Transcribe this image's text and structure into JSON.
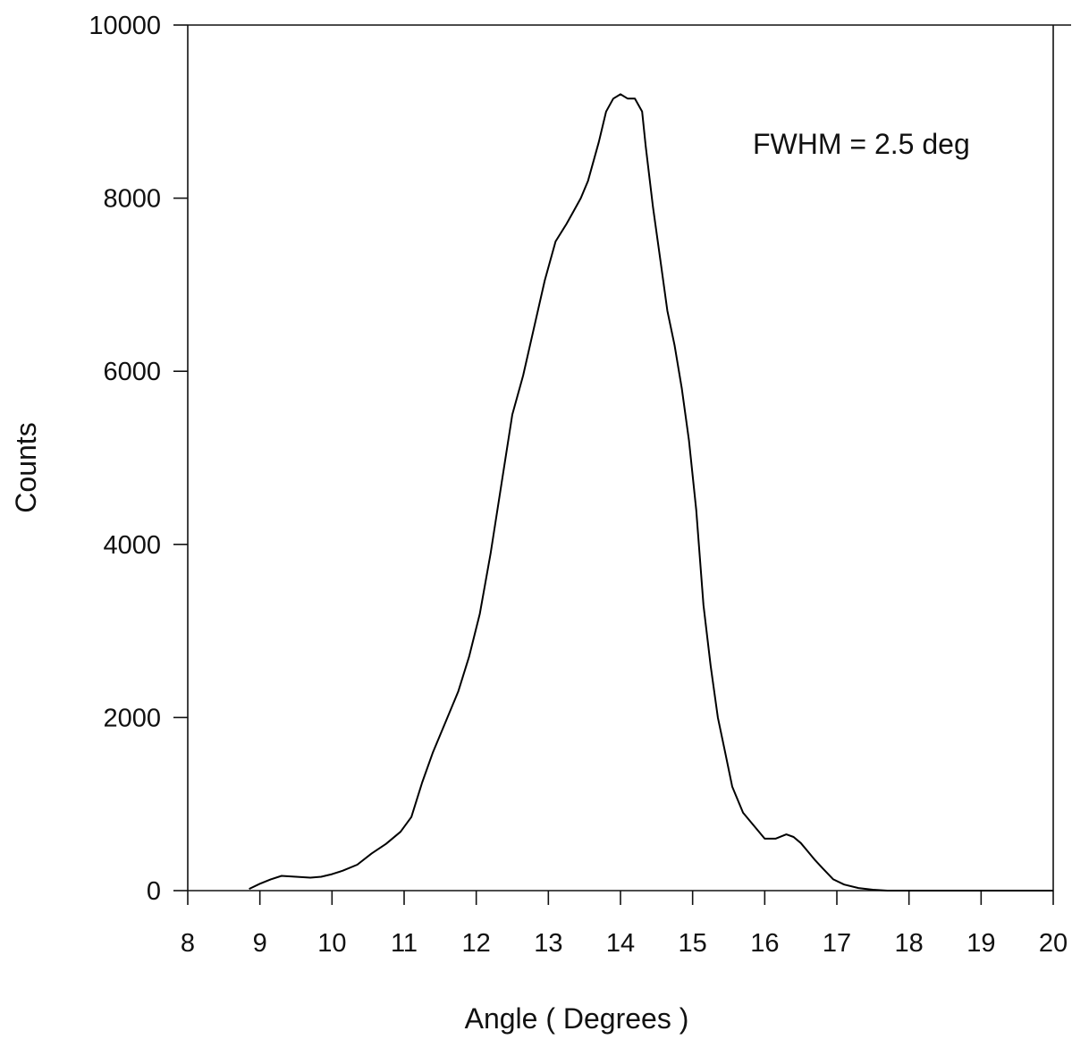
{
  "chart_data": {
    "type": "line",
    "xlabel": "Angle ( Degrees )",
    "ylabel": "Counts",
    "xlim": [
      8,
      20
    ],
    "ylim": [
      0,
      10000
    ],
    "x_ticks": [
      "8",
      "9",
      "10",
      "11",
      "12",
      "13",
      "14",
      "15",
      "16",
      "17",
      "18",
      "19",
      "20"
    ],
    "y_ticks": [
      "0",
      "2000",
      "4000",
      "6000",
      "8000",
      "10000"
    ],
    "annotation": "FWHM =  2.5 deg",
    "grid": false,
    "line_color": "#000000",
    "series": [
      {
        "x": [
          8.85,
          9.0,
          9.15,
          9.3,
          9.5,
          9.7,
          9.85,
          10.0,
          10.15,
          10.35,
          10.55,
          10.75,
          10.95,
          11.1,
          11.25,
          11.4,
          11.55,
          11.75,
          11.9,
          12.05,
          12.2,
          12.35,
          12.5,
          12.65,
          12.8,
          12.95,
          13.1,
          13.25,
          13.35,
          13.45,
          13.55,
          13.7,
          13.8,
          13.9,
          14.0,
          14.1,
          14.2,
          14.3,
          14.35,
          14.45,
          14.55,
          14.65,
          14.75,
          14.85,
          14.95,
          15.05,
          15.15,
          15.25,
          15.35,
          15.45,
          15.55,
          15.7,
          15.85,
          16.0,
          16.15,
          16.3,
          16.4,
          16.5,
          16.6,
          16.7,
          16.8,
          16.95,
          17.1,
          17.3,
          17.5,
          17.7,
          18.0,
          18.5,
          19.0,
          20.0
        ],
        "y": [
          20,
          80,
          130,
          170,
          160,
          150,
          160,
          190,
          230,
          300,
          430,
          540,
          680,
          850,
          1250,
          1600,
          1900,
          2300,
          2700,
          3200,
          3900,
          4700,
          5500,
          5950,
          6500,
          7050,
          7500,
          7700,
          7850,
          8000,
          8200,
          8650,
          9000,
          9150,
          9200,
          9150,
          9150,
          9000,
          8600,
          7900,
          7300,
          6700,
          6300,
          5800,
          5200,
          4400,
          3300,
          2600,
          2000,
          1600,
          1200,
          900,
          750,
          600,
          600,
          650,
          620,
          550,
          450,
          350,
          260,
          130,
          70,
          30,
          10,
          0,
          0,
          0,
          0,
          0
        ]
      }
    ]
  }
}
